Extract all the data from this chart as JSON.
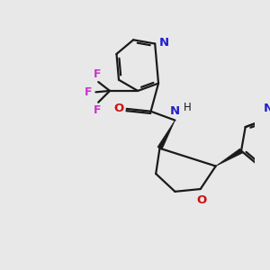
{
  "background_color": "#e8e8e8",
  "bond_color": "#1a1a1a",
  "N_color": "#2020cc",
  "O_color": "#cc1111",
  "F_color": "#cc33cc",
  "line_width": 1.6,
  "figsize": [
    3.0,
    3.0
  ],
  "dpi": 100,
  "xlim": [
    0,
    10
  ],
  "ylim": [
    0,
    10
  ]
}
